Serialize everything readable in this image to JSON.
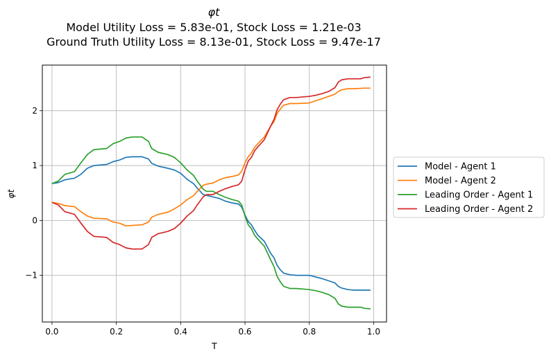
{
  "chart_data": {
    "type": "line",
    "title_lines": [
      "φt",
      "Model Utility Loss = 5.83e-01, Stock Loss = 1.21e-03",
      "Ground Truth Utility Loss = 8.13e-01, Stock Loss = 9.47e-17"
    ],
    "xlabel": "T",
    "ylabel": "φt",
    "xlim": [
      -0.03,
      1.04
    ],
    "ylim": [
      -1.85,
      2.83
    ],
    "xticks": [
      0.0,
      0.2,
      0.4,
      0.6,
      0.8,
      1.0
    ],
    "xtick_labels": [
      "0.0",
      "0.2",
      "0.4",
      "0.6",
      "0.8",
      "1.0"
    ],
    "yticks": [
      -1,
      0,
      1,
      2
    ],
    "ytick_labels": [
      "−1",
      "0",
      "1",
      "2"
    ],
    "grid": true,
    "legend_position": "right outside",
    "series": [
      {
        "name": "Model - Agent 1",
        "color": "#1f77b4",
        "points": [
          [
            0.0,
            0.67
          ],
          [
            0.02,
            0.69
          ],
          [
            0.04,
            0.74
          ],
          [
            0.07,
            0.77
          ],
          [
            0.09,
            0.84
          ],
          [
            0.11,
            0.95
          ],
          [
            0.13,
            1.0
          ],
          [
            0.17,
            1.02
          ],
          [
            0.19,
            1.07
          ],
          [
            0.21,
            1.1
          ],
          [
            0.23,
            1.15
          ],
          [
            0.25,
            1.16
          ],
          [
            0.28,
            1.16
          ],
          [
            0.3,
            1.12
          ],
          [
            0.31,
            1.04
          ],
          [
            0.33,
            0.99
          ],
          [
            0.36,
            0.95
          ],
          [
            0.38,
            0.92
          ],
          [
            0.4,
            0.86
          ],
          [
            0.42,
            0.75
          ],
          [
            0.44,
            0.67
          ],
          [
            0.45,
            0.6
          ],
          [
            0.47,
            0.47
          ],
          [
            0.5,
            0.43
          ],
          [
            0.52,
            0.4
          ],
          [
            0.54,
            0.35
          ],
          [
            0.56,
            0.32
          ],
          [
            0.58,
            0.3
          ],
          [
            0.59,
            0.24
          ],
          [
            0.6,
            0.1
          ],
          [
            0.61,
            -0.02
          ],
          [
            0.62,
            -0.08
          ],
          [
            0.63,
            -0.18
          ],
          [
            0.64,
            -0.27
          ],
          [
            0.66,
            -0.38
          ],
          [
            0.68,
            -0.6
          ],
          [
            0.69,
            -0.68
          ],
          [
            0.7,
            -0.82
          ],
          [
            0.71,
            -0.9
          ],
          [
            0.72,
            -0.96
          ],
          [
            0.74,
            -0.99
          ],
          [
            0.76,
            -1.0
          ],
          [
            0.8,
            -1.0
          ],
          [
            0.82,
            -1.03
          ],
          [
            0.84,
            -1.06
          ],
          [
            0.86,
            -1.1
          ],
          [
            0.88,
            -1.14
          ],
          [
            0.89,
            -1.2
          ],
          [
            0.9,
            -1.23
          ],
          [
            0.92,
            -1.26
          ],
          [
            0.94,
            -1.27
          ],
          [
            0.97,
            -1.27
          ],
          [
            0.99,
            -1.27
          ]
        ]
      },
      {
        "name": "Model - Agent 2",
        "color": "#ff7f0e",
        "points": [
          [
            0.0,
            0.33
          ],
          [
            0.02,
            0.31
          ],
          [
            0.04,
            0.27
          ],
          [
            0.07,
            0.25
          ],
          [
            0.09,
            0.16
          ],
          [
            0.11,
            0.08
          ],
          [
            0.13,
            0.04
          ],
          [
            0.17,
            0.03
          ],
          [
            0.19,
            -0.03
          ],
          [
            0.21,
            -0.05
          ],
          [
            0.23,
            -0.1
          ],
          [
            0.25,
            -0.09
          ],
          [
            0.28,
            -0.08
          ],
          [
            0.3,
            -0.03
          ],
          [
            0.31,
            0.06
          ],
          [
            0.33,
            0.11
          ],
          [
            0.36,
            0.15
          ],
          [
            0.38,
            0.21
          ],
          [
            0.4,
            0.28
          ],
          [
            0.42,
            0.38
          ],
          [
            0.44,
            0.45
          ],
          [
            0.45,
            0.52
          ],
          [
            0.47,
            0.64
          ],
          [
            0.48,
            0.66
          ],
          [
            0.5,
            0.68
          ],
          [
            0.52,
            0.74
          ],
          [
            0.54,
            0.78
          ],
          [
            0.56,
            0.8
          ],
          [
            0.58,
            0.83
          ],
          [
            0.59,
            0.9
          ],
          [
            0.6,
            1.05
          ],
          [
            0.61,
            1.16
          ],
          [
            0.62,
            1.23
          ],
          [
            0.63,
            1.33
          ],
          [
            0.64,
            1.4
          ],
          [
            0.66,
            1.52
          ],
          [
            0.68,
            1.72
          ],
          [
            0.69,
            1.8
          ],
          [
            0.7,
            1.95
          ],
          [
            0.71,
            2.03
          ],
          [
            0.72,
            2.1
          ],
          [
            0.74,
            2.13
          ],
          [
            0.76,
            2.13
          ],
          [
            0.8,
            2.14
          ],
          [
            0.82,
            2.18
          ],
          [
            0.84,
            2.22
          ],
          [
            0.86,
            2.26
          ],
          [
            0.88,
            2.3
          ],
          [
            0.89,
            2.35
          ],
          [
            0.9,
            2.38
          ],
          [
            0.92,
            2.4
          ],
          [
            0.94,
            2.4
          ],
          [
            0.97,
            2.41
          ],
          [
            0.99,
            2.41
          ]
        ]
      },
      {
        "name": "Leading Order - Agent 1",
        "color": "#2ca02c",
        "points": [
          [
            0.0,
            0.67
          ],
          [
            0.02,
            0.72
          ],
          [
            0.04,
            0.84
          ],
          [
            0.07,
            0.89
          ],
          [
            0.09,
            1.05
          ],
          [
            0.11,
            1.2
          ],
          [
            0.13,
            1.29
          ],
          [
            0.17,
            1.31
          ],
          [
            0.19,
            1.4
          ],
          [
            0.21,
            1.44
          ],
          [
            0.23,
            1.5
          ],
          [
            0.25,
            1.52
          ],
          [
            0.28,
            1.52
          ],
          [
            0.3,
            1.44
          ],
          [
            0.31,
            1.31
          ],
          [
            0.33,
            1.24
          ],
          [
            0.36,
            1.2
          ],
          [
            0.38,
            1.15
          ],
          [
            0.4,
            1.05
          ],
          [
            0.42,
            0.92
          ],
          [
            0.44,
            0.82
          ],
          [
            0.45,
            0.73
          ],
          [
            0.47,
            0.57
          ],
          [
            0.48,
            0.53
          ],
          [
            0.5,
            0.53
          ],
          [
            0.52,
            0.47
          ],
          [
            0.54,
            0.42
          ],
          [
            0.56,
            0.38
          ],
          [
            0.58,
            0.35
          ],
          [
            0.59,
            0.28
          ],
          [
            0.6,
            0.08
          ],
          [
            0.61,
            -0.08
          ],
          [
            0.62,
            -0.15
          ],
          [
            0.63,
            -0.27
          ],
          [
            0.64,
            -0.34
          ],
          [
            0.66,
            -0.47
          ],
          [
            0.68,
            -0.72
          ],
          [
            0.69,
            -0.84
          ],
          [
            0.7,
            -1.02
          ],
          [
            0.71,
            -1.12
          ],
          [
            0.72,
            -1.2
          ],
          [
            0.74,
            -1.24
          ],
          [
            0.76,
            -1.24
          ],
          [
            0.8,
            -1.26
          ],
          [
            0.82,
            -1.28
          ],
          [
            0.84,
            -1.31
          ],
          [
            0.86,
            -1.35
          ],
          [
            0.88,
            -1.42
          ],
          [
            0.89,
            -1.52
          ],
          [
            0.9,
            -1.56
          ],
          [
            0.92,
            -1.58
          ],
          [
            0.94,
            -1.58
          ],
          [
            0.96,
            -1.58
          ],
          [
            0.97,
            -1.6
          ],
          [
            0.99,
            -1.61
          ]
        ]
      },
      {
        "name": "Leading Order - Agent 2",
        "color": "#d62728",
        "points": [
          [
            0.0,
            0.33
          ],
          [
            0.02,
            0.28
          ],
          [
            0.04,
            0.16
          ],
          [
            0.07,
            0.11
          ],
          [
            0.09,
            -0.05
          ],
          [
            0.11,
            -0.2
          ],
          [
            0.13,
            -0.29
          ],
          [
            0.17,
            -0.31
          ],
          [
            0.19,
            -0.4
          ],
          [
            0.21,
            -0.44
          ],
          [
            0.23,
            -0.5
          ],
          [
            0.25,
            -0.52
          ],
          [
            0.28,
            -0.52
          ],
          [
            0.3,
            -0.44
          ],
          [
            0.31,
            -0.31
          ],
          [
            0.33,
            -0.24
          ],
          [
            0.36,
            -0.2
          ],
          [
            0.38,
            -0.15
          ],
          [
            0.4,
            -0.05
          ],
          [
            0.42,
            0.08
          ],
          [
            0.44,
            0.18
          ],
          [
            0.45,
            0.27
          ],
          [
            0.47,
            0.43
          ],
          [
            0.48,
            0.47
          ],
          [
            0.5,
            0.47
          ],
          [
            0.52,
            0.53
          ],
          [
            0.54,
            0.58
          ],
          [
            0.56,
            0.62
          ],
          [
            0.58,
            0.65
          ],
          [
            0.59,
            0.72
          ],
          [
            0.6,
            0.92
          ],
          [
            0.61,
            1.08
          ],
          [
            0.62,
            1.15
          ],
          [
            0.63,
            1.27
          ],
          [
            0.64,
            1.34
          ],
          [
            0.66,
            1.47
          ],
          [
            0.68,
            1.72
          ],
          [
            0.69,
            1.84
          ],
          [
            0.7,
            2.02
          ],
          [
            0.71,
            2.12
          ],
          [
            0.72,
            2.2
          ],
          [
            0.74,
            2.24
          ],
          [
            0.76,
            2.24
          ],
          [
            0.8,
            2.26
          ],
          [
            0.82,
            2.28
          ],
          [
            0.84,
            2.31
          ],
          [
            0.86,
            2.35
          ],
          [
            0.88,
            2.42
          ],
          [
            0.89,
            2.52
          ],
          [
            0.9,
            2.56
          ],
          [
            0.92,
            2.58
          ],
          [
            0.94,
            2.58
          ],
          [
            0.96,
            2.58
          ],
          [
            0.97,
            2.6
          ],
          [
            0.99,
            2.61
          ]
        ]
      }
    ]
  }
}
